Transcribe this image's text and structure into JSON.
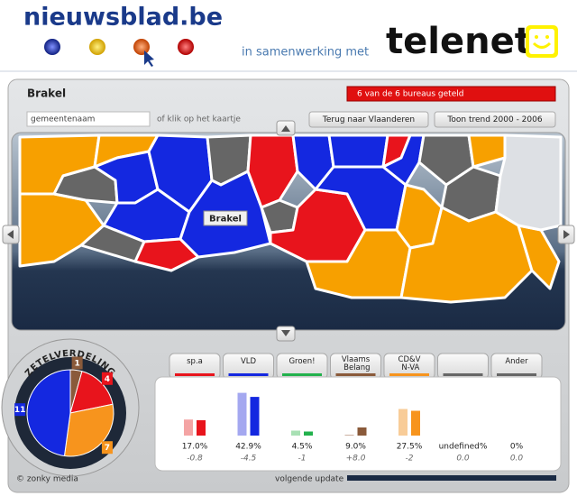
{
  "header": {
    "logo": "nieuwsblad.be",
    "partner_text": "in samenwerking met",
    "partner_logo": "telenet"
  },
  "panel": {
    "municipality": "Brakel",
    "status": "6 van de 6 bureaus geteld",
    "search_placeholder": "gemeentenaam",
    "search_hint": "of klik op het kaartje",
    "buttons": [
      "Terug naar Vlaanderen",
      "Toon trend 2000 - 2006"
    ],
    "map_label": "Brakel"
  },
  "seats": {
    "title": "ZETELVERDELING",
    "slices": [
      {
        "value": 1,
        "color": "#8a5a3a"
      },
      {
        "value": 4,
        "color": "#e8141c"
      },
      {
        "value": 7,
        "color": "#f7941d"
      },
      {
        "value": 11,
        "color": "#1428e0"
      }
    ]
  },
  "results": {
    "parties": [
      {
        "name": "sp.a",
        "color": "#e8141c",
        "previous_color": "#f4a4a4",
        "previous": 17.8,
        "value": 17.0,
        "value_label": "17.0%",
        "change": "-0.8"
      },
      {
        "name": "VLD",
        "color": "#1428e0",
        "previous_color": "#a4a8f0",
        "previous": 47.4,
        "value": 42.9,
        "value_label": "42.9%",
        "change": "-4.5"
      },
      {
        "name": "Groen!",
        "color": "#22b14c",
        "previous_color": "#a8e0b4",
        "previous": 5.5,
        "value": 4.5,
        "value_label": "4.5%",
        "change": "-1"
      },
      {
        "name": "Vlaams Belang",
        "color": "#8a5a3a",
        "previous_color": "#cbb0a0",
        "previous": 1.0,
        "value": 9.0,
        "value_label": "9.0%",
        "change": "+8.0"
      },
      {
        "name": "CD&V N-VA",
        "color": "#f7941d",
        "previous_color": "#f8cc98",
        "previous": 29.5,
        "value": 27.5,
        "value_label": "27.5%",
        "change": "-2"
      },
      {
        "color": "#666666",
        "value": null,
        "value_label": "undefined%",
        "change": "0.0"
      },
      {
        "name": "Ander",
        "color": "#666666",
        "value": 0,
        "value_label": "0%",
        "change": "0.0"
      }
    ]
  },
  "footer": {
    "credit": "© zonky media",
    "update": "volgende update"
  }
}
